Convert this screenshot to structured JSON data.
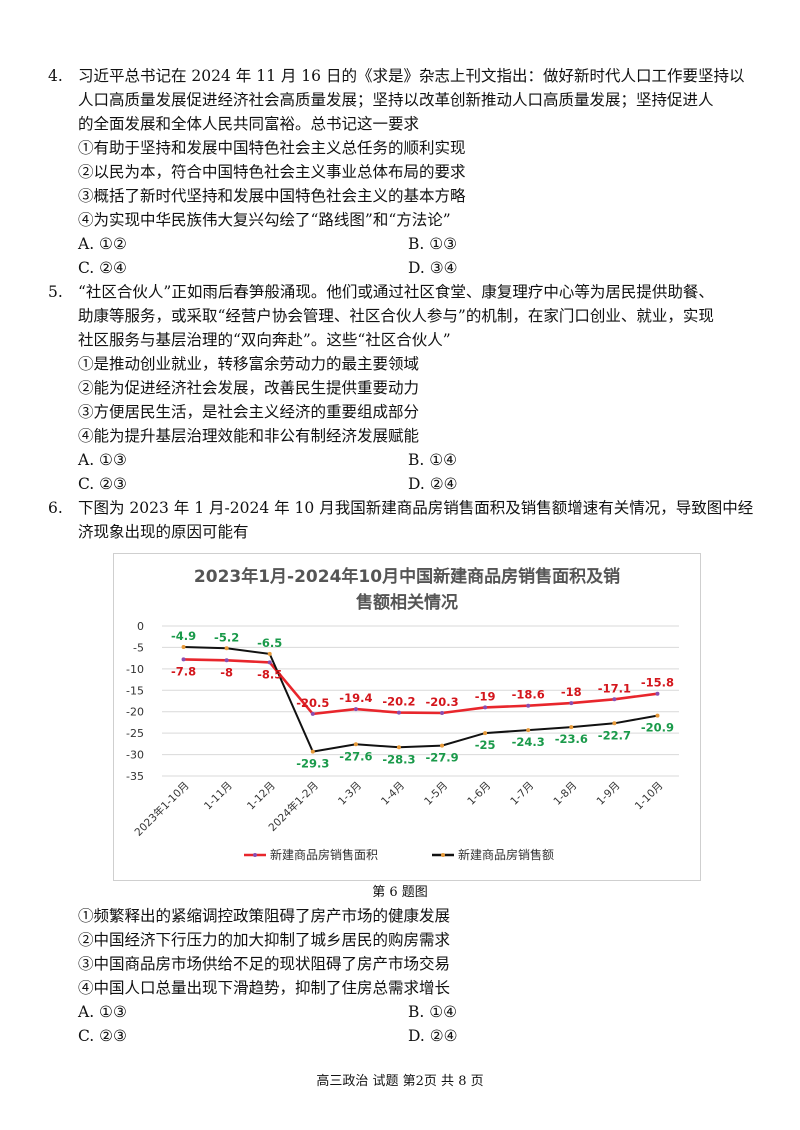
{
  "q4": {
    "num": "4.",
    "stem": [
      "习近平总书记在 2024 年 11 月 16 日的《求是》杂志上刊文指出：做好新时代人口工作要坚持以",
      "人口高质量发展促进经济社会高质量发展；坚持以改革创新推动人口高质量发展；坚持促进人",
      "的全面发展和全体人民共同富裕。总书记这一要求"
    ],
    "options": [
      "①有助于坚持和发展中国特色社会主义总任务的顺利实现",
      "②以民为本，符合中国特色社会主义事业总体布局的要求",
      "③概括了新时代坚持和发展中国特色社会主义的基本方略",
      "④为实现中华民族伟大复兴勾绘了“路线图”和“方法论”"
    ],
    "choices": [
      "A. ①②",
      "B. ①③",
      "C. ②④",
      "D. ③④"
    ]
  },
  "q5": {
    "num": "5.",
    "stem": [
      "“社区合伙人”正如雨后春笋般涌现。他们或通过社区食堂、康复理疗中心等为居民提供助餐、",
      "助康等服务，或采取“经营户协会管理、社区合伙人参与”的机制，在家门口创业、就业，实现",
      "社区服务与基层治理的“双向奔赴”。这些“社区合伙人”"
    ],
    "options": [
      "①是推动创业就业，转移富余劳动力的最主要领域",
      "②能为促进经济社会发展，改善民生提供重要动力",
      "③方便居民生活，是社会主义经济的重要组成部分",
      "④能为提升基层治理效能和非公有制经济发展赋能"
    ],
    "choices": [
      "A. ①③",
      "B. ①④",
      "C. ②③",
      "D. ②④"
    ]
  },
  "q6": {
    "num": "6.",
    "stem": [
      "下图为 2023 年 1 月-2024 年 10 月我国新建商品房销售面积及销售额增速有关情况，导致图中经",
      "济现象出现的原因可能有"
    ],
    "caption": "第 6 题图",
    "options": [
      "①频繁释出的紧缩调控政策阻碍了房产市场的健康发展",
      "②中国经济下行压力的加大抑制了城乡居民的购房需求",
      "③中国商品房市场供给不足的现状阻碍了房产市场交易",
      "④中国人口总量出现下滑趋势，抑制了住房总需求增长"
    ],
    "choices": [
      "A. ①③",
      "B. ①④",
      "C. ②③",
      "D. ②④"
    ]
  },
  "chart_data": {
    "type": "line",
    "title": "2023年1月-2024年10月中国新建商品房销售面积及销售额相关情况",
    "title_lines": [
      "2023年1月-2024年10月中国新建商品房销售面积及销",
      "售额相关情况"
    ],
    "categories": [
      "2023年1-10月",
      "1-11月",
      "1-12月",
      "2024年1-2月",
      "1-3月",
      "1-4月",
      "1-5月",
      "1-6月",
      "1-7月",
      "1-8月",
      "1-9月",
      "1-10月"
    ],
    "series": [
      {
        "name": "新建商品房销售面积",
        "color": "#e8262c",
        "label_color": "#d4161c",
        "values": [
          -7.8,
          -8,
          -8.5,
          -20.5,
          -19.4,
          -20.2,
          -20.3,
          -19,
          -18.6,
          -18,
          -17.1,
          -15.8
        ],
        "labels": [
          "-7.8",
          "-8",
          "-8.5",
          "-20.5",
          "-19.4",
          "-20.2",
          "-20.3",
          "-19",
          "-18.6",
          "-18",
          "-17.1",
          "-15.8"
        ]
      },
      {
        "name": "新建商品房销售额",
        "color": "#111111",
        "label_color": "#1a9a4a",
        "values": [
          -4.9,
          -5.2,
          -6.5,
          -29.3,
          -27.6,
          -28.3,
          -27.9,
          -25,
          -24.3,
          -23.6,
          -22.7,
          -20.9
        ],
        "labels": [
          "-4.9",
          "-5.2",
          "-6.5",
          "-29.3",
          "-27.6",
          "-28.3",
          "-27.9",
          "-25",
          "-24.3",
          "-23.6",
          "-22.7",
          "-20.9"
        ]
      }
    ],
    "yticks": [
      "0",
      "-5",
      "-10",
      "-15",
      "-20",
      "-25",
      "-30",
      "-35"
    ],
    "ylim": [
      -35,
      0
    ],
    "grid": true,
    "legend": "bottom"
  },
  "footer": "高三政治 试题 第2页 共 8 页"
}
